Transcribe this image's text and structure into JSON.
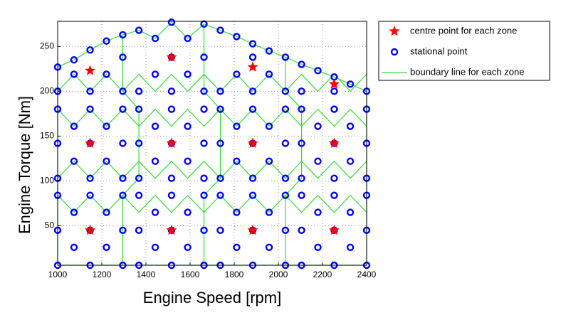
{
  "chart_data": {
    "type": "scatter",
    "xlabel": "Engine Speed [rpm]",
    "ylabel": "Engine Torque [Nm]",
    "xlim": [
      1000,
      2400
    ],
    "ylim": [
      6,
      278
    ],
    "xticks": [
      1000,
      1200,
      1400,
      1600,
      1800,
      2000,
      2200,
      2400
    ],
    "yticks": [
      50,
      100,
      150,
      200,
      250
    ],
    "grid": true,
    "legend": "outside upper right",
    "series": [
      {
        "name": "centre point for each zone",
        "marker": "star",
        "color": "#ff0000",
        "x": [
          1147,
          1516,
          1884,
          2253,
          1147,
          1516,
          1884,
          2253,
          1147,
          1516,
          1884,
          2253
        ],
        "y": [
          45,
          45,
          45,
          45,
          142,
          142,
          142,
          142,
          223,
          238,
          227,
          208
        ]
      },
      {
        "name": "stational point",
        "marker": "circle",
        "color": "#0000ff",
        "x": [
          1000,
          1147,
          1295,
          1368,
          1516,
          1663,
          1737,
          1884,
          2032,
          2105,
          2253,
          2400,
          1074,
          1221,
          1442,
          1589,
          1811,
          1958,
          2179,
          2326,
          1000,
          1147,
          1295,
          1368,
          1516,
          1663,
          1737,
          1884,
          2032,
          2105,
          2253,
          2400,
          1074,
          1221,
          1442,
          1589,
          1811,
          1958,
          2179,
          2326,
          1000,
          1147,
          1295,
          1368,
          1516,
          1663,
          1737,
          1884,
          2032,
          2105,
          2253,
          2400,
          1000,
          1147,
          1295,
          1368,
          1516,
          1663,
          1737,
          1884,
          2032,
          2105,
          2253,
          2400,
          1074,
          1221,
          1442,
          1589,
          1811,
          1958,
          2179,
          2326,
          1000,
          1147,
          1295,
          1368,
          1516,
          1663,
          1737,
          1884,
          2032,
          2105,
          2253,
          2400,
          1074,
          1221,
          1442,
          1589,
          1811,
          1958,
          2179,
          2326,
          1000,
          1147,
          1295,
          1368,
          1516,
          1663,
          1737,
          1884,
          2032,
          2105,
          2253,
          2400,
          1000,
          1147,
          1295,
          1368,
          1516,
          1663,
          1737,
          1884,
          2032,
          2105,
          2253,
          2400,
          1074,
          1221,
          1442,
          1589,
          1811,
          1958,
          1295,
          1516,
          1663,
          1884,
          1000,
          1074,
          1147,
          1221,
          1295,
          1368,
          1442,
          1516,
          1589,
          1663,
          1737,
          1811,
          1884,
          1958,
          2032,
          2105,
          2179,
          2253,
          2326
        ],
        "y": [
          6,
          6,
          6,
          6,
          6,
          6,
          6,
          6,
          6,
          6,
          6,
          6,
          26,
          26,
          26,
          26,
          26,
          26,
          26,
          26,
          45,
          45,
          45,
          45,
          45,
          45,
          45,
          45,
          45,
          45,
          45,
          45,
          65,
          65,
          65,
          65,
          65,
          65,
          65,
          65,
          84,
          84,
          84,
          84,
          84,
          84,
          84,
          84,
          84,
          84,
          84,
          84,
          103,
          103,
          103,
          103,
          103,
          103,
          103,
          103,
          103,
          103,
          103,
          103,
          122,
          122,
          122,
          122,
          122,
          122,
          122,
          122,
          142,
          142,
          142,
          142,
          142,
          142,
          142,
          142,
          142,
          142,
          142,
          142,
          161,
          161,
          161,
          161,
          161,
          161,
          161,
          161,
          180,
          180,
          180,
          180,
          180,
          180,
          180,
          180,
          180,
          180,
          180,
          180,
          200,
          200,
          200,
          200,
          200,
          200,
          200,
          200,
          200,
          200,
          200,
          200,
          219,
          219,
          219,
          219,
          219,
          219,
          238,
          238,
          238,
          238,
          227,
          235,
          246,
          256,
          263,
          268,
          259,
          277,
          259,
          275,
          268,
          261,
          253,
          245,
          238,
          230,
          223,
          216,
          208
        ]
      },
      {
        "name": "boundary line for each zone",
        "marker": "line",
        "color": "#33dd33",
        "lines": [
          {
            "x": [
              1000,
              2400,
              2400,
              2326,
              2253,
              2179,
              2105,
              2032,
              1958,
              1884,
              1811,
              1737,
              1663,
              1589,
              1516,
              1442,
              1368,
              1295,
              1221,
              1147,
              1074,
              1000,
              1000
            ],
            "y": [
              6,
              6,
              200,
              208,
              216,
              223,
              230,
              238,
              245,
              253,
              261,
              268,
              275,
              259,
              277,
              259,
              268,
              263,
              256,
              246,
              235,
              227,
              6
            ]
          },
          {
            "x": [
              1000,
              1074,
              1147,
              1221,
              1295,
              1368,
              1442,
              1516,
              1589,
              1663,
              1737,
              1811,
              1884,
              1958,
              2032,
              2105,
              2179,
              2253,
              2326,
              2400
            ],
            "y": [
              84,
              65,
              84,
              65,
              84,
              65,
              84,
              65,
              84,
              65,
              84,
              65,
              84,
              65,
              84,
              65,
              84,
              65,
              84,
              65
            ]
          },
          {
            "x": [
              1000,
              1074,
              1147,
              1221,
              1295,
              1368,
              1442,
              1516,
              1589,
              1663,
              1737,
              1811,
              1884,
              1958,
              2032,
              2105,
              2179,
              2253,
              2326,
              2400
            ],
            "y": [
              103,
              122,
              103,
              122,
              103,
              122,
              103,
              122,
              103,
              122,
              103,
              122,
              103,
              122,
              103,
              122,
              103,
              122,
              103,
              122
            ]
          },
          {
            "x": [
              1000,
              1074,
              1147,
              1221,
              1295,
              1368,
              1442,
              1516,
              1589,
              1663,
              1737,
              1811,
              1884,
              1958,
              2032,
              2105,
              2179,
              2253,
              2326,
              2400
            ],
            "y": [
              180,
              161,
              180,
              161,
              180,
              161,
              180,
              161,
              180,
              161,
              180,
              161,
              180,
              161,
              180,
              161,
              180,
              161,
              180,
              161
            ]
          },
          {
            "x": [
              1000,
              1074,
              1147,
              1221,
              1295,
              1368,
              1442,
              1516,
              1589,
              1663,
              1737,
              1811,
              1884,
              1958,
              2032,
              2105,
              2179,
              2253,
              2326,
              2400
            ],
            "y": [
              200,
              219,
              200,
              219,
              200,
              219,
              200,
              219,
              200,
              219,
              200,
              219,
              200,
              219,
              200,
              219,
              200,
              219,
              200,
              219
            ]
          },
          {
            "x": [
              1295,
              1295,
              1368,
              1368,
              1295,
              1295
            ],
            "y": [
              6,
              84,
              103,
              180,
              200,
              263
            ]
          },
          {
            "x": [
              1663,
              1663,
              1737,
              1737,
              1663,
              1663
            ],
            "y": [
              6,
              84,
              103,
              180,
              200,
              275
            ]
          },
          {
            "x": [
              2032,
              2032,
              2105,
              2105,
              2032,
              2032
            ],
            "y": [
              6,
              84,
              103,
              180,
              200,
              238
            ]
          }
        ]
      }
    ]
  }
}
